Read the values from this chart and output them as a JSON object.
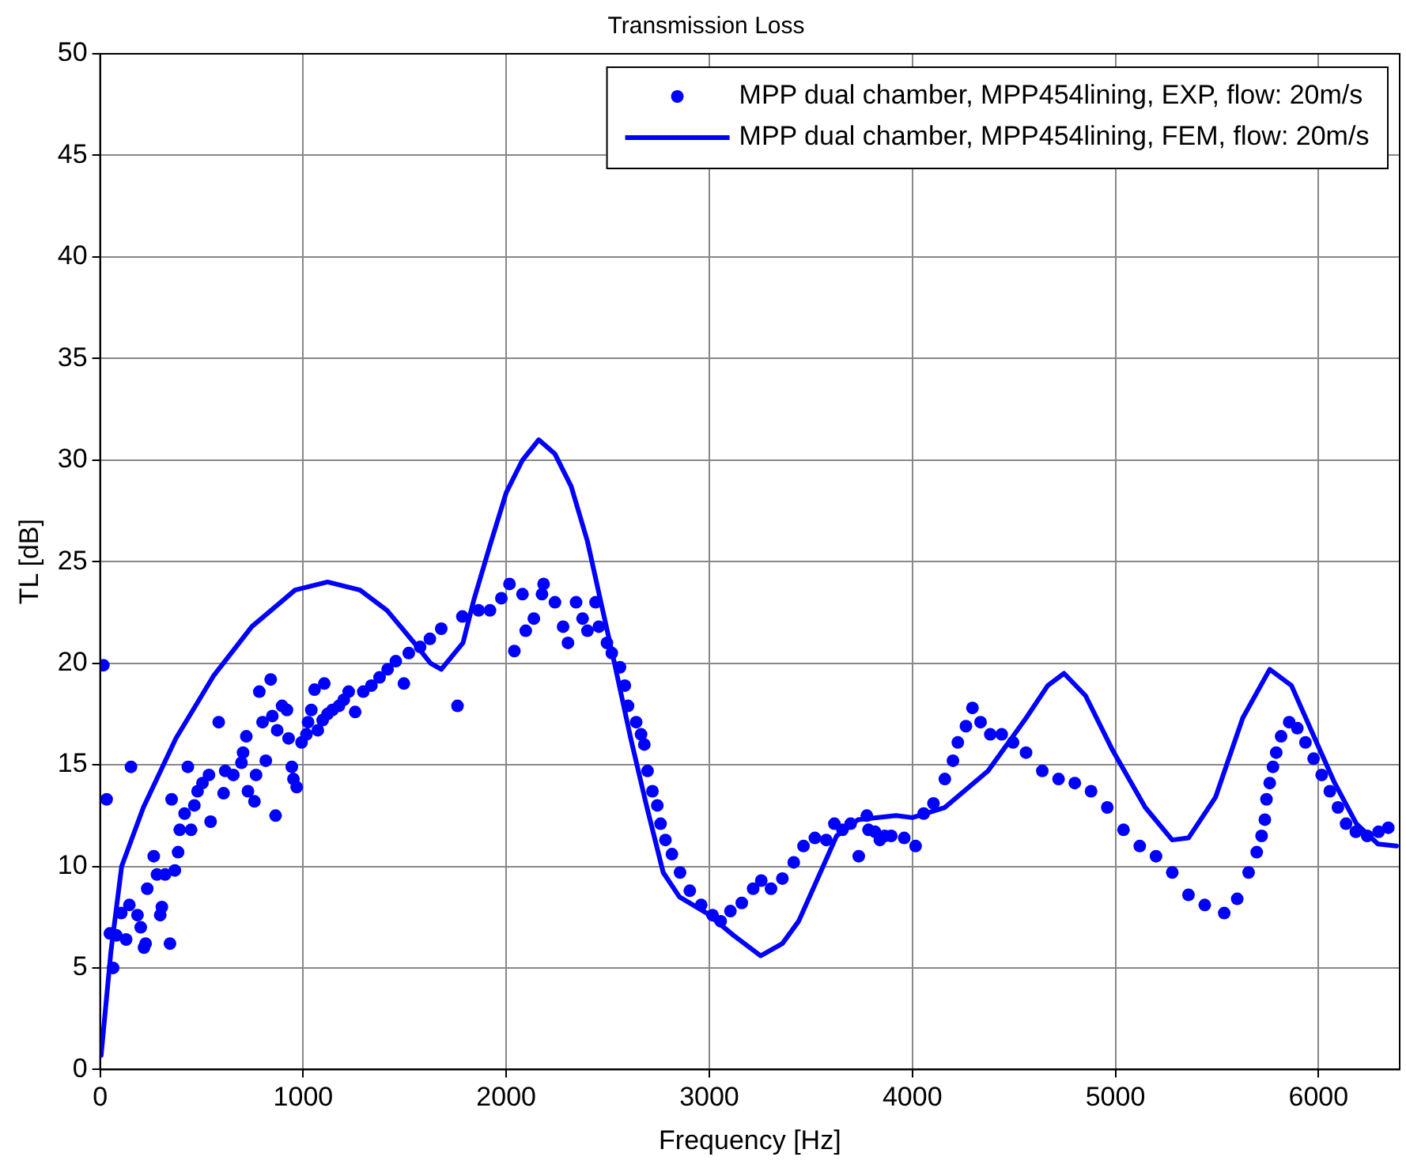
{
  "chart_data": {
    "type": "scatter",
    "title": "Transmission Loss",
    "xlabel": "Frequency [Hz]",
    "ylabel": "TL [dB]",
    "xlim": [
      0,
      6400
    ],
    "xticks": [
      0,
      1000,
      2000,
      3000,
      4000,
      5000,
      6000
    ],
    "ylim": [
      0,
      50
    ],
    "yticks": [
      0,
      5,
      10,
      15,
      20,
      25,
      30,
      35,
      40,
      45,
      50
    ],
    "grid": true,
    "legend": "top right",
    "series": [
      {
        "name": "MPP dual chamber, MPP454lining, EXP, flow: 20m/s",
        "marker": "circle",
        "color": "#0000ff",
        "x": [
          16,
          32,
          48,
          64,
          80,
          104,
          128,
          144,
          152,
          184,
          200,
          216,
          224,
          232,
          264,
          280,
          296,
          304,
          320,
          344,
          352,
          368,
          384,
          392,
          416,
          432,
          448,
          464,
          480,
          504,
          536,
          544,
          584,
          608,
          616,
          656,
          696,
          704,
          720,
          728,
          760,
          768,
          784,
          800,
          816,
          840,
          848,
          864,
          872,
          896,
          920,
          928,
          944,
          952,
          968,
          992,
          1016,
          1024,
          1040,
          1056,
          1072,
          1096,
          1104,
          1120,
          1144,
          1176,
          1200,
          1224,
          1256,
          1296,
          1336,
          1376,
          1416,
          1456,
          1496,
          1520,
          1576,
          1624,
          1680,
          1760,
          1784,
          1864,
          1920,
          1976,
          2016,
          2040,
          2080,
          2096,
          2136,
          2176,
          2184,
          2240,
          2280,
          2304,
          2344,
          2376,
          2400,
          2440,
          2456,
          2496,
          2520,
          2560,
          2584,
          2600,
          2640,
          2664,
          2680,
          2696,
          2720,
          2744,
          2760,
          2784,
          2816,
          2856,
          2904,
          2960,
          3016,
          3056,
          3104,
          3160,
          3216,
          3256,
          3304,
          3360,
          3416,
          3464,
          3520,
          3576,
          3616,
          3656,
          3696,
          3736,
          3776,
          3784,
          3816,
          3840,
          3864,
          3896,
          3960,
          4016,
          4056,
          4104,
          4160,
          4200,
          4224,
          4264,
          4296,
          4336,
          4384,
          4440,
          4496,
          4560,
          4640,
          4720,
          4800,
          4880,
          4960,
          5040,
          5120,
          5200,
          5280,
          5360,
          5440,
          5536,
          5600,
          5656,
          5696,
          5720,
          5736,
          5744,
          5760,
          5776,
          5792,
          5816,
          5856,
          5896,
          5936,
          5976,
          6016,
          6056,
          6096,
          6136,
          6184,
          6240,
          6296,
          6344
        ],
        "values": [
          19.9,
          13.3,
          6.7,
          5.0,
          6.6,
          7.7,
          6.4,
          8.1,
          14.9,
          7.6,
          7.0,
          6.0,
          6.2,
          8.9,
          10.5,
          9.6,
          7.6,
          8.0,
          9.6,
          6.2,
          13.3,
          9.8,
          10.7,
          11.8,
          12.6,
          14.9,
          11.8,
          13.0,
          13.7,
          14.1,
          14.5,
          12.2,
          17.1,
          13.6,
          14.7,
          14.5,
          15.1,
          15.6,
          16.4,
          13.7,
          13.2,
          14.5,
          18.6,
          17.1,
          15.2,
          19.2,
          17.4,
          12.5,
          16.7,
          17.9,
          17.7,
          16.3,
          14.9,
          14.3,
          13.9,
          16.1,
          16.5,
          17.1,
          17.7,
          18.7,
          16.7,
          17.2,
          19.0,
          17.5,
          17.7,
          17.9,
          18.2,
          18.6,
          17.6,
          18.6,
          18.9,
          19.3,
          19.7,
          20.1,
          19.0,
          20.5,
          20.8,
          21.2,
          21.7,
          17.9,
          22.3,
          22.6,
          22.6,
          23.2,
          23.9,
          20.6,
          23.4,
          21.6,
          22.2,
          23.4,
          23.9,
          23.0,
          21.8,
          21.0,
          23.0,
          22.2,
          21.6,
          23.0,
          21.8,
          21.0,
          20.5,
          19.8,
          18.9,
          17.9,
          17.1,
          16.5,
          16.0,
          14.7,
          13.7,
          13.0,
          12.1,
          11.3,
          10.6,
          9.7,
          8.8,
          8.1,
          7.6,
          7.3,
          7.8,
          8.2,
          8.9,
          9.3,
          8.9,
          9.4,
          10.2,
          11.0,
          11.4,
          11.3,
          12.1,
          11.8,
          12.1,
          10.5,
          12.5,
          11.8,
          11.7,
          11.3,
          11.5,
          11.5,
          11.4,
          11.0,
          12.6,
          13.1,
          14.3,
          15.2,
          16.1,
          16.9,
          17.8,
          17.1,
          16.5,
          16.5,
          16.1,
          15.6,
          14.7,
          14.3,
          14.1,
          13.7,
          12.9,
          11.8,
          11.0,
          10.5,
          9.7,
          8.6,
          8.1,
          7.7,
          8.4,
          9.7,
          10.7,
          11.5,
          12.3,
          13.3,
          14.1,
          14.9,
          15.6,
          16.4,
          17.1,
          16.8,
          16.1,
          15.3,
          14.5,
          13.7,
          12.9,
          12.1,
          11.7,
          11.5,
          11.7,
          11.9
        ]
      },
      {
        "name": "MPP dual chamber, MPP454lining, FEM, flow: 20m/s",
        "type": "line",
        "marker": "none",
        "line_style": "solid",
        "color": "#0000ff",
        "x": [
          5,
          53,
          106,
          213,
          373,
          560,
          747,
          960,
          1120,
          1280,
          1413,
          1547,
          1627,
          1680,
          1787,
          1840,
          1920,
          2000,
          2080,
          2160,
          2240,
          2320,
          2400,
          2453,
          2533,
          2613,
          2693,
          2773,
          2853,
          2987,
          3120,
          3253,
          3360,
          3440,
          3547,
          3627,
          3733,
          3920,
          4000,
          4160,
          4373,
          4560,
          4667,
          4747,
          4853,
          4987,
          5147,
          5280,
          5360,
          5493,
          5627,
          5760,
          5867,
          5973,
          6080,
          6187,
          6293,
          6384
        ],
        "values": [
          0.7,
          5.8,
          10.0,
          12.9,
          16.3,
          19.4,
          21.8,
          23.6,
          24.0,
          23.6,
          22.6,
          21.0,
          20.0,
          19.7,
          21.0,
          23.1,
          25.8,
          28.4,
          30.0,
          31.0,
          30.3,
          28.7,
          26.0,
          23.6,
          20.0,
          16.3,
          12.9,
          9.7,
          8.5,
          7.7,
          6.6,
          5.6,
          6.2,
          7.3,
          9.7,
          11.5,
          12.3,
          12.5,
          12.4,
          12.9,
          14.7,
          17.3,
          18.9,
          19.5,
          18.4,
          15.7,
          12.9,
          11.3,
          11.4,
          13.4,
          17.3,
          19.7,
          18.9,
          16.5,
          14.1,
          12.1,
          11.1,
          11.0
        ]
      }
    ]
  }
}
